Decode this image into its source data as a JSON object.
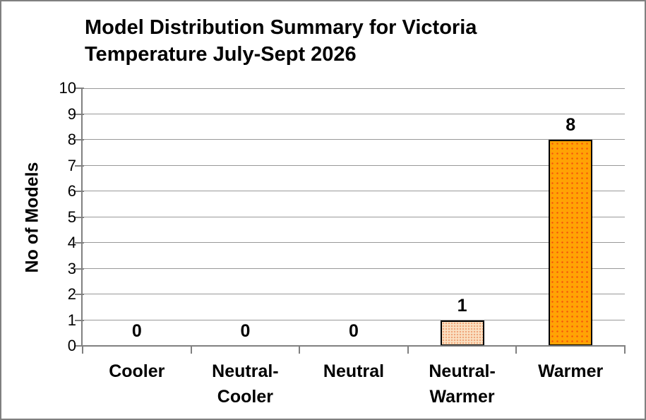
{
  "chart": {
    "title_line1": "Model Distribution Summary for Victoria",
    "title_line2": "Temperature July-Sept 2026",
    "ylabel": "No of Models"
  },
  "chart_data": {
    "type": "bar",
    "title": "Model Distribution Summary for Victoria Temperature July-Sept 2026",
    "xlabel": "",
    "ylabel": "No of Models",
    "categories": [
      "Cooler",
      "Neutral-Cooler",
      "Neutral",
      "Neutral-Warmer",
      "Warmer"
    ],
    "values": [
      0,
      0,
      0,
      1,
      8
    ],
    "data_labels": [
      "0",
      "0",
      "0",
      "1",
      "8"
    ],
    "ylim": [
      0,
      10
    ],
    "yticks": [
      "0",
      "1",
      "2",
      "3",
      "4",
      "5",
      "6",
      "7",
      "8",
      "9",
      "10"
    ],
    "grid": "horizontal",
    "legend": "none",
    "bar_styles": [
      {
        "fill": null,
        "dot": null,
        "dot_spacing": 0
      },
      {
        "fill": null,
        "dot": null,
        "dot_spacing": 0
      },
      {
        "fill": null,
        "dot": null,
        "dot_spacing": 0
      },
      {
        "fill": "#FAE0C2",
        "dot": "#F0A478",
        "dot_spacing": 4
      },
      {
        "fill": "#FFA305",
        "dot": "#F4500A",
        "dot_spacing": 7
      }
    ],
    "bar_border_color": "#000000",
    "axis_color": "#808080",
    "gridline_color": "#999999",
    "text_color": "#000000",
    "frame_border_color": "#808080",
    "background_color": "#FFFFFF"
  }
}
